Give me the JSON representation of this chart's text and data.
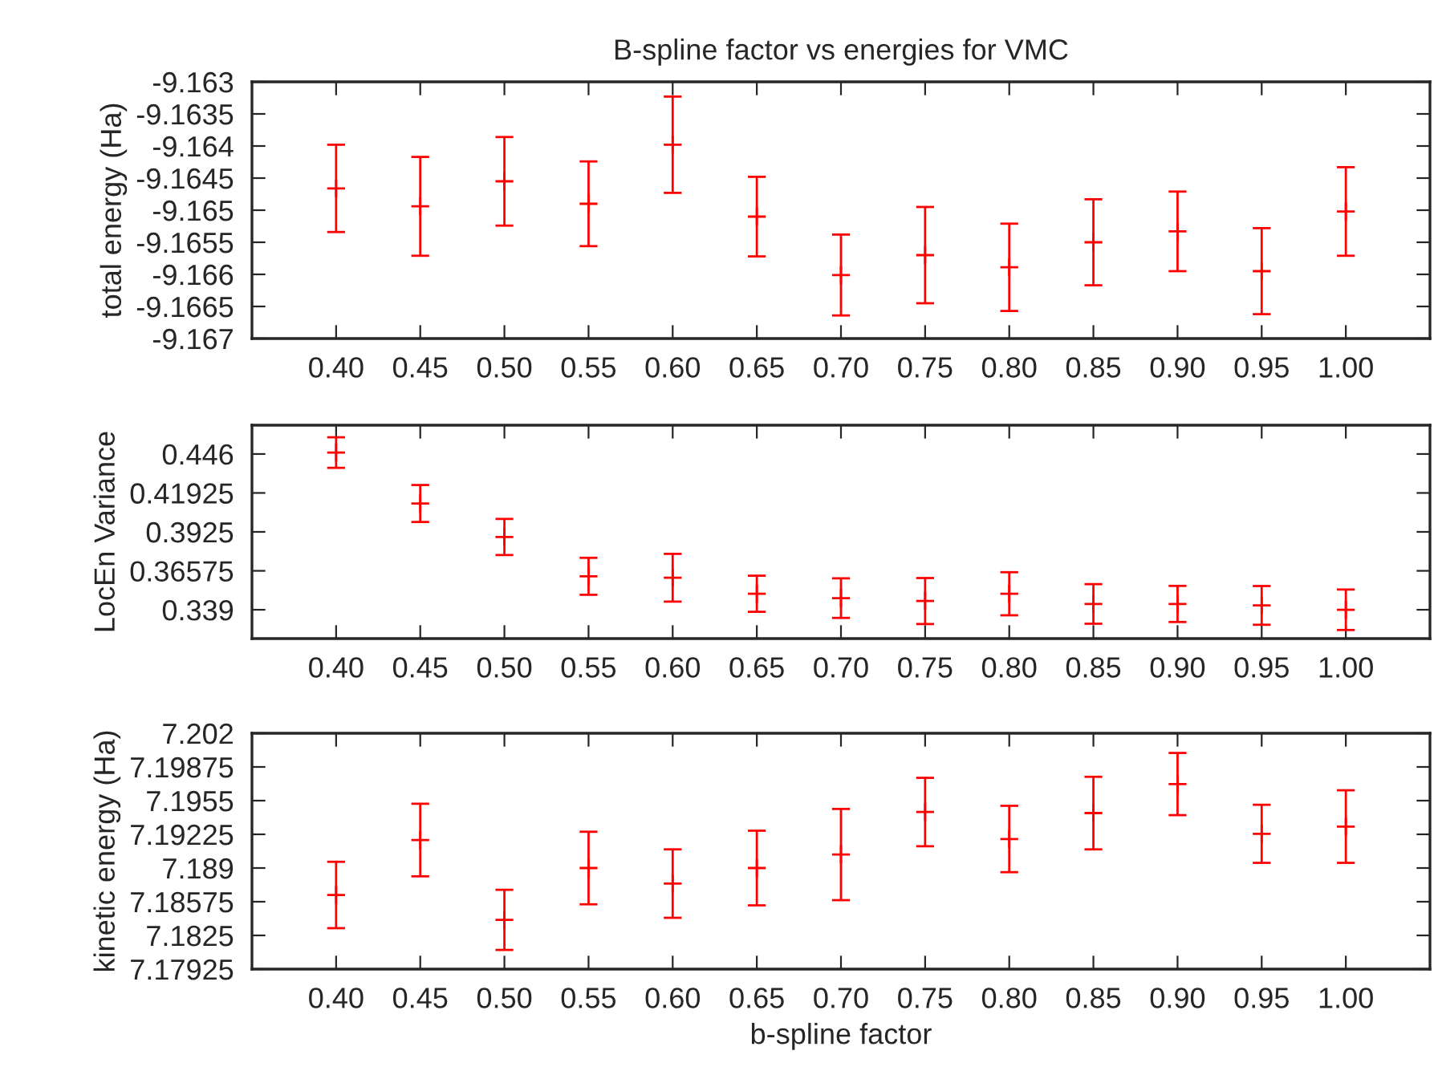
{
  "chart_data": [
    {
      "type": "scatter",
      "title": "B-spline factor vs energies for VMC",
      "ylabel": "total energy (Ha)",
      "marker": "cross",
      "color": "#ff0000",
      "x": [
        0.4,
        0.45,
        0.5,
        0.55,
        0.6,
        0.65,
        0.7,
        0.75,
        0.8,
        0.85,
        0.9,
        0.95,
        1.0
      ],
      "values": [
        -9.16466,
        -9.16494,
        -9.16455,
        -9.1649,
        -9.16398,
        -9.1651,
        -9.16601,
        -9.1657,
        -9.16589,
        -9.1655,
        -9.16533,
        -9.16595,
        -9.16502
      ],
      "errors": [
        0.00068,
        0.00077,
        0.00069,
        0.00066,
        0.00075,
        0.00062,
        0.00063,
        0.00075,
        0.00068,
        0.00067,
        0.00062,
        0.00067,
        0.00069
      ],
      "xlim": [
        0.35,
        1.05
      ],
      "xticks": [
        {
          "value": 0.4,
          "label": "0.40"
        },
        {
          "value": 0.45,
          "label": "0.45"
        },
        {
          "value": 0.5,
          "label": "0.50"
        },
        {
          "value": 0.55,
          "label": "0.55"
        },
        {
          "value": 0.6,
          "label": "0.60"
        },
        {
          "value": 0.65,
          "label": "0.65"
        },
        {
          "value": 0.7,
          "label": "0.70"
        },
        {
          "value": 0.75,
          "label": "0.75"
        },
        {
          "value": 0.8,
          "label": "0.80"
        },
        {
          "value": 0.85,
          "label": "0.85"
        },
        {
          "value": 0.9,
          "label": "0.90"
        },
        {
          "value": 0.95,
          "label": "0.95"
        },
        {
          "value": 1.0,
          "label": "1.00"
        }
      ],
      "ylim": [
        -9.167,
        -9.163
      ],
      "yticks": [
        -9.167,
        -9.1665,
        -9.166,
        -9.1655,
        -9.165,
        -9.1645,
        -9.164,
        -9.1635,
        -9.163
      ],
      "grid": false
    },
    {
      "type": "scatter",
      "ylabel": "LocEn Variance",
      "marker": "cross",
      "color": "#ff0000",
      "x": [
        0.4,
        0.45,
        0.5,
        0.55,
        0.6,
        0.65,
        0.7,
        0.75,
        0.8,
        0.85,
        0.9,
        0.95,
        1.0
      ],
      "values": [
        0.447,
        0.412,
        0.389,
        0.362,
        0.361,
        0.35,
        0.347,
        0.345,
        0.35,
        0.343,
        0.343,
        0.342,
        0.339
      ],
      "errors": [
        0.0105,
        0.0127,
        0.0124,
        0.0127,
        0.0164,
        0.0124,
        0.0136,
        0.0158,
        0.0148,
        0.0136,
        0.0124,
        0.0133,
        0.0139
      ],
      "xlim": [
        0.35,
        1.05
      ],
      "xticks": [
        {
          "value": 0.4,
          "label": "0.40"
        },
        {
          "value": 0.45,
          "label": "0.45"
        },
        {
          "value": 0.5,
          "label": "0.50"
        },
        {
          "value": 0.55,
          "label": "0.55"
        },
        {
          "value": 0.6,
          "label": "0.60"
        },
        {
          "value": 0.65,
          "label": "0.65"
        },
        {
          "value": 0.7,
          "label": "0.70"
        },
        {
          "value": 0.75,
          "label": "0.75"
        },
        {
          "value": 0.8,
          "label": "0.80"
        },
        {
          "value": 0.85,
          "label": "0.85"
        },
        {
          "value": 0.9,
          "label": "0.90"
        },
        {
          "value": 0.95,
          "label": "0.95"
        },
        {
          "value": 1.0,
          "label": "1.00"
        }
      ],
      "ylim": [
        0.3192,
        0.4658
      ],
      "yticks": [
        0.339,
        0.36575,
        0.3925,
        0.41925,
        0.446
      ],
      "grid": false
    },
    {
      "type": "scatter",
      "ylabel": "kinetic energy (Ha)",
      "xlabel": "b-spline factor",
      "marker": "cross",
      "color": "#ff0000",
      "x": [
        0.4,
        0.45,
        0.5,
        0.55,
        0.6,
        0.65,
        0.7,
        0.75,
        0.8,
        0.85,
        0.9,
        0.95,
        1.0
      ],
      "values": [
        7.1864,
        7.1917,
        7.184,
        7.189,
        7.1875,
        7.189,
        7.1903,
        7.1944,
        7.1918,
        7.1943,
        7.1971,
        7.1923,
        7.193
      ],
      "errors": [
        0.0032,
        0.0035,
        0.0029,
        0.0035,
        0.0033,
        0.0036,
        0.0044,
        0.0033,
        0.0032,
        0.0035,
        0.003,
        0.0028,
        0.0035
      ],
      "xlim": [
        0.35,
        1.05
      ],
      "xticks": [
        {
          "value": 0.4,
          "label": "0.40"
        },
        {
          "value": 0.45,
          "label": "0.45"
        },
        {
          "value": 0.5,
          "label": "0.50"
        },
        {
          "value": 0.55,
          "label": "0.55"
        },
        {
          "value": 0.6,
          "label": "0.60"
        },
        {
          "value": 0.65,
          "label": "0.65"
        },
        {
          "value": 0.7,
          "label": "0.70"
        },
        {
          "value": 0.75,
          "label": "0.75"
        },
        {
          "value": 0.8,
          "label": "0.80"
        },
        {
          "value": 0.85,
          "label": "0.85"
        },
        {
          "value": 0.9,
          "label": "0.90"
        },
        {
          "value": 0.95,
          "label": "0.95"
        },
        {
          "value": 1.0,
          "label": "1.00"
        }
      ],
      "ylim": [
        7.17925,
        7.202
      ],
      "yticks": [
        7.17925,
        7.1825,
        7.18575,
        7.189,
        7.19225,
        7.1955,
        7.19875,
        7.202
      ],
      "grid": false
    }
  ]
}
